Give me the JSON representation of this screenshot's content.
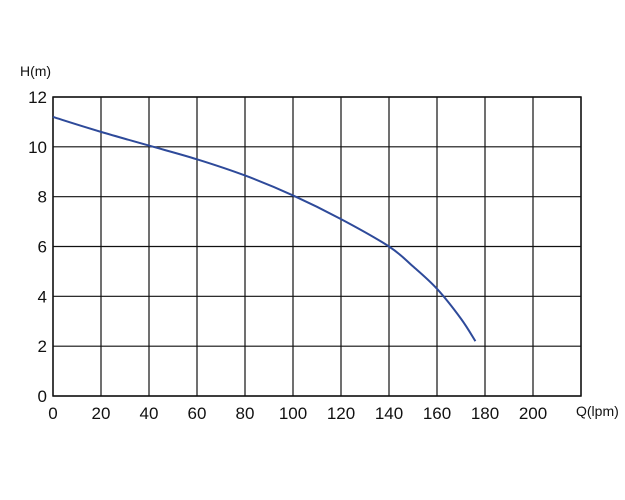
{
  "chart_data": {
    "type": "line",
    "title": "",
    "xlabel": "Q(lpm)",
    "ylabel": "H(m)",
    "xlim": [
      0,
      220
    ],
    "ylim": [
      0,
      12
    ],
    "xticks": [
      0,
      20,
      40,
      60,
      80,
      100,
      120,
      140,
      160,
      180,
      200
    ],
    "yticks": [
      0,
      2,
      4,
      6,
      8,
      10,
      12
    ],
    "grid": true,
    "legend": "none",
    "series": [
      {
        "color": "#2e4a9a",
        "x": [
          0,
          20,
          40,
          60,
          80,
          100,
          120,
          140,
          150,
          160,
          170,
          176
        ],
        "y": [
          11.2,
          10.6,
          10.05,
          9.5,
          8.85,
          8.05,
          7.1,
          6.0,
          5.2,
          4.3,
          3.1,
          2.2
        ]
      }
    ]
  }
}
